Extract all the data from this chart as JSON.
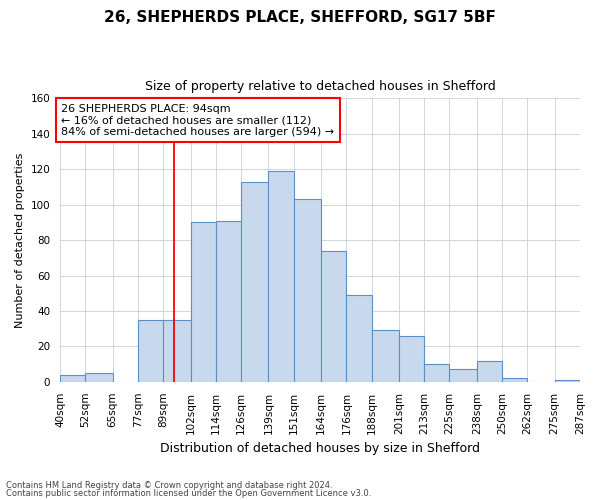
{
  "title1": "26, SHEPHERDS PLACE, SHEFFORD, SG17 5BF",
  "title2": "Size of property relative to detached houses in Shefford",
  "xlabel": "Distribution of detached houses by size in Shefford",
  "ylabel": "Number of detached properties",
  "footnote1": "Contains HM Land Registry data © Crown copyright and database right 2024.",
  "footnote2": "Contains public sector information licensed under the Open Government Licence v3.0.",
  "annotation_line1": "26 SHEPHERDS PLACE: 94sqm",
  "annotation_line2": "← 16% of detached houses are smaller (112)",
  "annotation_line3": "84% of semi-detached houses are larger (594) →",
  "bar_color": "#c9d9ed",
  "bar_edge_color": "#5b8fc9",
  "red_line_x": 94,
  "bin_edges": [
    40,
    52,
    65,
    77,
    89,
    102,
    114,
    126,
    139,
    151,
    164,
    176,
    188,
    201,
    213,
    225,
    238,
    250,
    262,
    275,
    287
  ],
  "bar_heights": [
    4,
    5,
    0,
    35,
    35,
    90,
    91,
    113,
    119,
    103,
    74,
    49,
    29,
    26,
    10,
    7,
    12,
    2,
    0,
    1
  ],
  "tick_labels": [
    "40sqm",
    "52sqm",
    "65sqm",
    "77sqm",
    "89sqm",
    "102sqm",
    "114sqm",
    "126sqm",
    "139sqm",
    "151sqm",
    "164sqm",
    "176sqm",
    "188sqm",
    "201sqm",
    "213sqm",
    "225sqm",
    "238sqm",
    "250sqm",
    "262sqm",
    "275sqm",
    "287sqm"
  ],
  "ylim": [
    0,
    160
  ],
  "yticks": [
    0,
    20,
    40,
    60,
    80,
    100,
    120,
    140,
    160
  ],
  "background_color": "#ffffff",
  "grid_color": "#c8d0dc",
  "title1_fontsize": 11,
  "title2_fontsize": 9,
  "ylabel_fontsize": 8,
  "xlabel_fontsize": 9,
  "tick_fontsize": 7.5,
  "annot_fontsize": 8
}
